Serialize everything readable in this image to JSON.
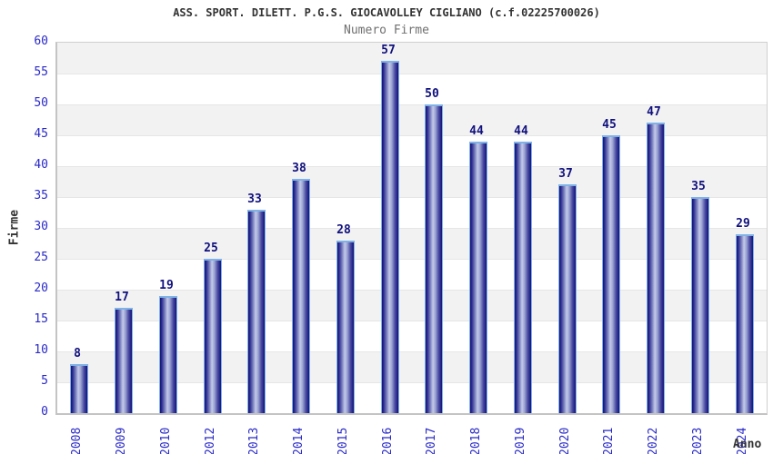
{
  "header": {
    "title": "ASS. SPORT. DILETT. P.G.S. GIOCAVOLLEY CIGLIANO (c.f.02225700026)",
    "subtitle": "Numero Firme"
  },
  "chart_data": {
    "type": "bar",
    "title": "ASS. SPORT. DILETT. P.G.S. GIOCAVOLLEY CIGLIANO (c.f.02225700026)",
    "subtitle": "Numero Firme",
    "xlabel": "Anno",
    "ylabel": "Firme",
    "categories": [
      "2008",
      "2009",
      "2010",
      "2012",
      "2013",
      "2014",
      "2015",
      "2016",
      "2017",
      "2018",
      "2019",
      "2020",
      "2021",
      "2022",
      "2023",
      "2024"
    ],
    "values": [
      8,
      17,
      19,
      25,
      33,
      38,
      28,
      57,
      50,
      44,
      44,
      37,
      45,
      47,
      35,
      29
    ],
    "ylim": [
      0,
      60
    ],
    "ytick_step": 5,
    "yticks": [
      0,
      5,
      10,
      15,
      20,
      25,
      30,
      35,
      40,
      45,
      50,
      55,
      60
    ],
    "grid": "alternating horizontal bands every 5 units, gray on top band",
    "legend": "none",
    "bar_labels_shown": true,
    "colors": {
      "bar_edge": "#12127a",
      "bar_highlight": "#c3caea",
      "bar_outline": "#7fb2e6",
      "tick_label": "#2a2ac8",
      "value_label": "#10107e",
      "band_gray": "#f2f2f2",
      "band_white": "#ffffff",
      "plot_border": "#d0d0d0",
      "title_color": "#333333",
      "subtitle_color": "#707070"
    }
  }
}
